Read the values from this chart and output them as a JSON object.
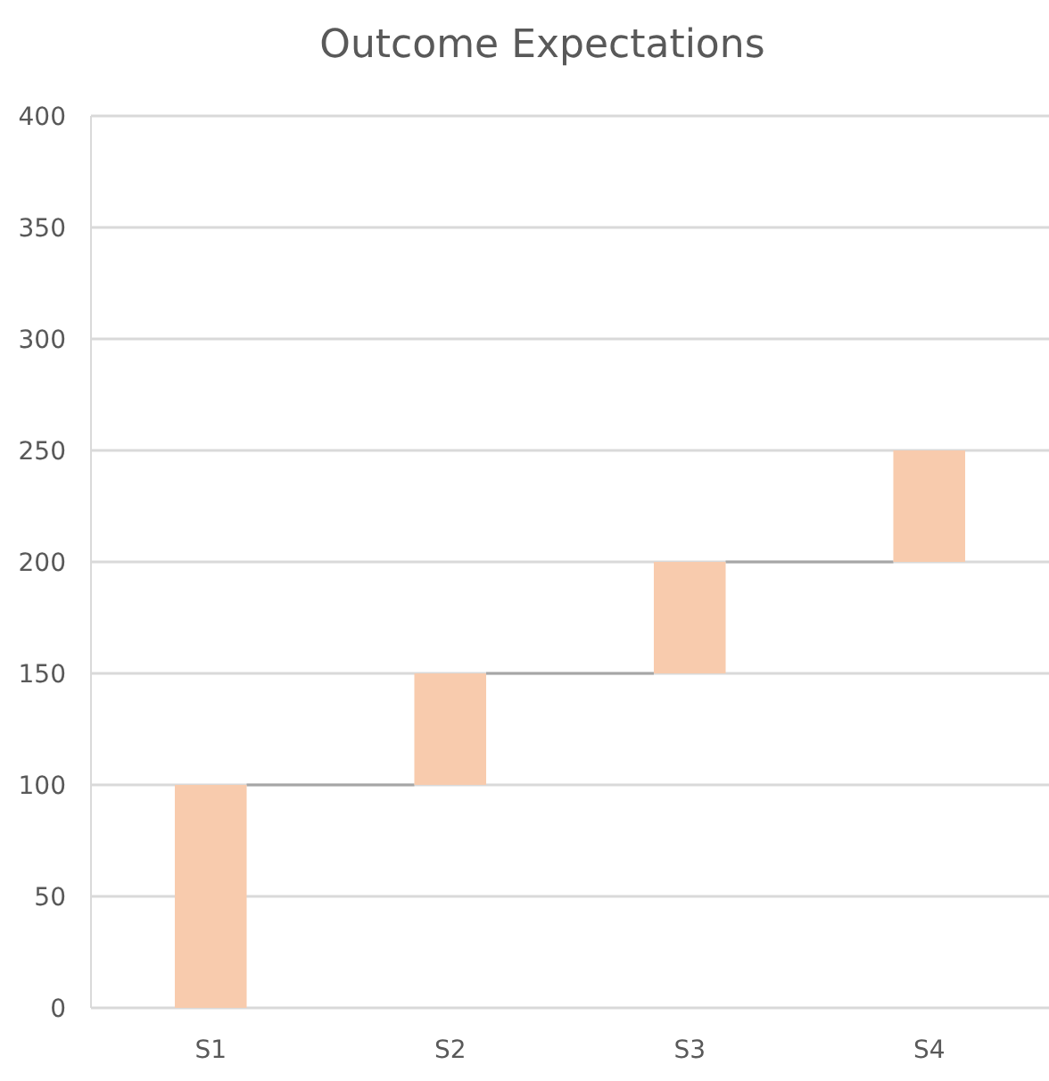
{
  "chart_data": {
    "type": "bar",
    "title": "Outcome Expectations",
    "categories": [
      "S1",
      "S2",
      "S3",
      "S4"
    ],
    "values": [
      100,
      50,
      50,
      50
    ],
    "base": [
      0,
      100,
      150,
      200
    ],
    "color": "#f8cbad",
    "ylim": [
      0,
      400
    ],
    "yticks": [
      0,
      50,
      100,
      150,
      200,
      250,
      300,
      350,
      400
    ],
    "grid": "y"
  }
}
